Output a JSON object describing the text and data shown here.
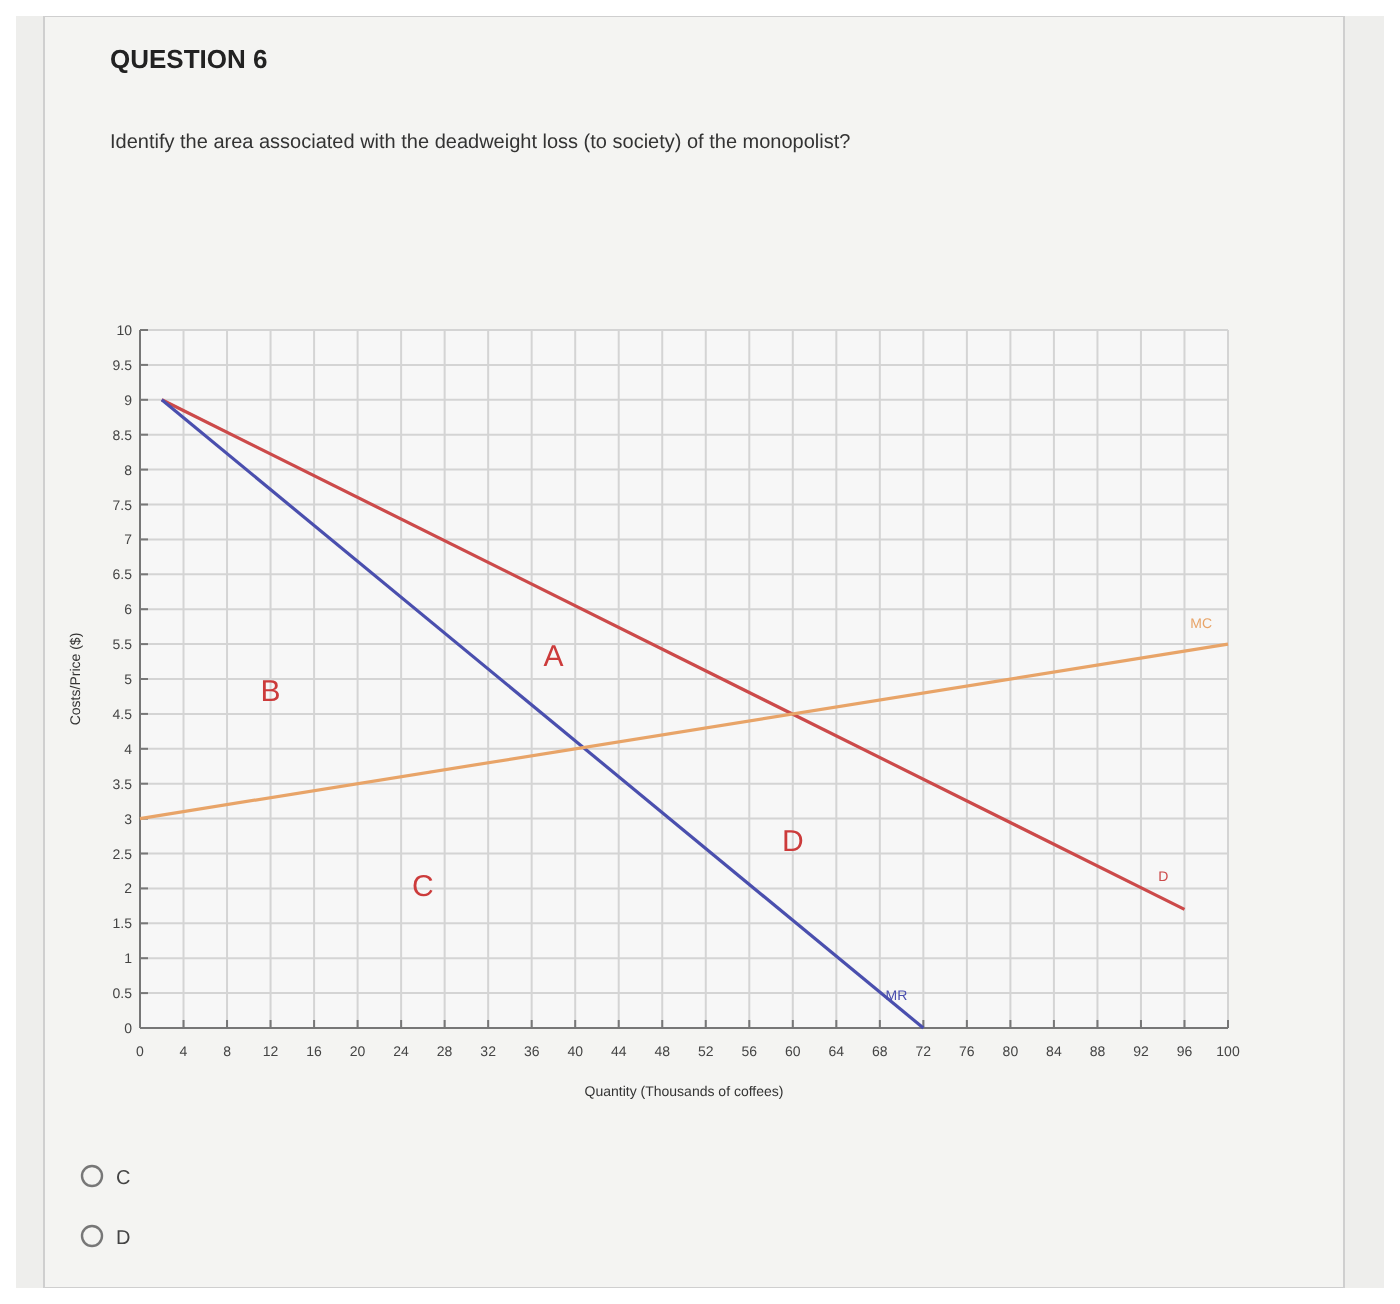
{
  "chart_data": {
    "type": "line",
    "title": "QUESTION 6",
    "subtitle": "Identify the area associated with the deadweight loss (to society) of the monopolist?",
    "xlabel": "Quantity (Thousands of coffees)",
    "ylabel": "Costs/Price ($)",
    "series": [
      {
        "name": "D",
        "color": "#cc4a4a",
        "x": [
          2,
          96
        ],
        "values": [
          9,
          1.7
        ]
      },
      {
        "name": "MR",
        "color": "#4a4fae",
        "x": [
          2,
          72
        ],
        "values": [
          9,
          0
        ]
      },
      {
        "name": "MC",
        "color": "#e8a468",
        "x": [
          0,
          100
        ],
        "values": [
          3,
          5.5
        ]
      }
    ],
    "xlim": [
      0,
      100
    ],
    "xticks": [
      0,
      4,
      8,
      12,
      16,
      20,
      24,
      28,
      32,
      36,
      40,
      44,
      48,
      52,
      56,
      60,
      64,
      68,
      72,
      76,
      80,
      84,
      88,
      92,
      96,
      100
    ],
    "ylim": [
      0,
      10
    ],
    "yticks": [
      0,
      0.5,
      1,
      1.5,
      2,
      2.5,
      3,
      3.5,
      4,
      4.5,
      5,
      5.5,
      6,
      6.5,
      7,
      7.5,
      8,
      8.5,
      9,
      9.5,
      10
    ],
    "grid": true,
    "marker": "none",
    "line_style": "solid",
    "annotations": [
      "A",
      "B",
      "C",
      "D",
      "C",
      "D"
    ]
  }
}
